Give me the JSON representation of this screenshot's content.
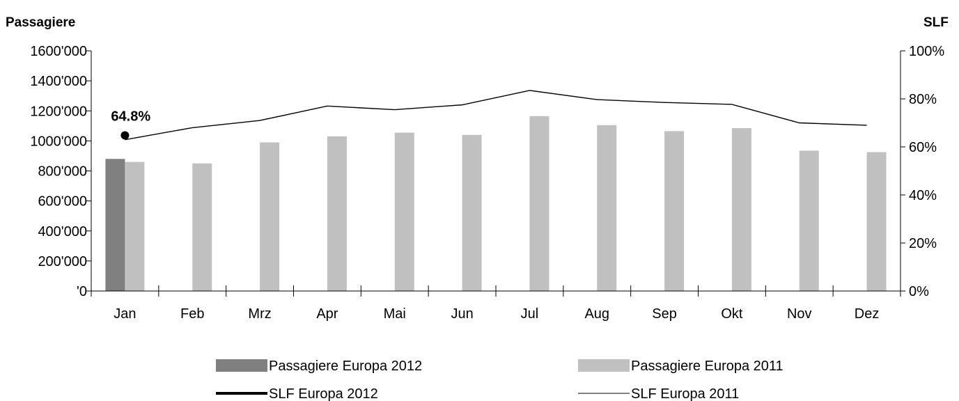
{
  "chart_data": {
    "type": "bar",
    "categories": [
      "Jan",
      "Feb",
      "Mrz",
      "Apr",
      "Mai",
      "Jun",
      "Jul",
      "Aug",
      "Sep",
      "Okt",
      "Nov",
      "Dez"
    ],
    "y_left_label": "Passagiere",
    "y_right_label": "SLF",
    "y_left_ticks": [
      "'0",
      "200'000",
      "400'000",
      "600'000",
      "800'000",
      "1000'000",
      "1200'000",
      "1400'000",
      "1600'000"
    ],
    "y_right_ticks": [
      "0%",
      "20%",
      "40%",
      "60%",
      "80%",
      "100%"
    ],
    "ylim_left": [
      0,
      1600000
    ],
    "ylim_right": [
      0,
      100
    ],
    "grid": false,
    "legend_position": "bottom",
    "bar_series": [
      {
        "name": "Passagiere Europa 2012",
        "color": "#808080",
        "values": [
          880000,
          null,
          null,
          null,
          null,
          null,
          null,
          null,
          null,
          null,
          null,
          null
        ]
      },
      {
        "name": "Passagiere Europa 2011",
        "color": "#c0c0c0",
        "values": [
          860000,
          850000,
          990000,
          1030000,
          1055000,
          1040000,
          1165000,
          1105000,
          1065000,
          1085000,
          935000,
          925000
        ]
      }
    ],
    "line_series": [
      {
        "name": "SLF Europa 2012",
        "color": "#000000",
        "values": [
          64.8,
          null,
          null,
          null,
          null,
          null,
          null,
          null,
          null,
          null,
          null,
          null
        ]
      },
      {
        "name": "SLF Europa 2011",
        "color": "#000000",
        "values": [
          63.0,
          68.0,
          71.0,
          77.0,
          75.5,
          77.5,
          83.5,
          79.7,
          78.5,
          77.7,
          70.0,
          69.0
        ]
      }
    ],
    "annotations": [
      {
        "text": "64.8%",
        "series": "SLF Europa 2012",
        "category": "Jan"
      }
    ]
  }
}
